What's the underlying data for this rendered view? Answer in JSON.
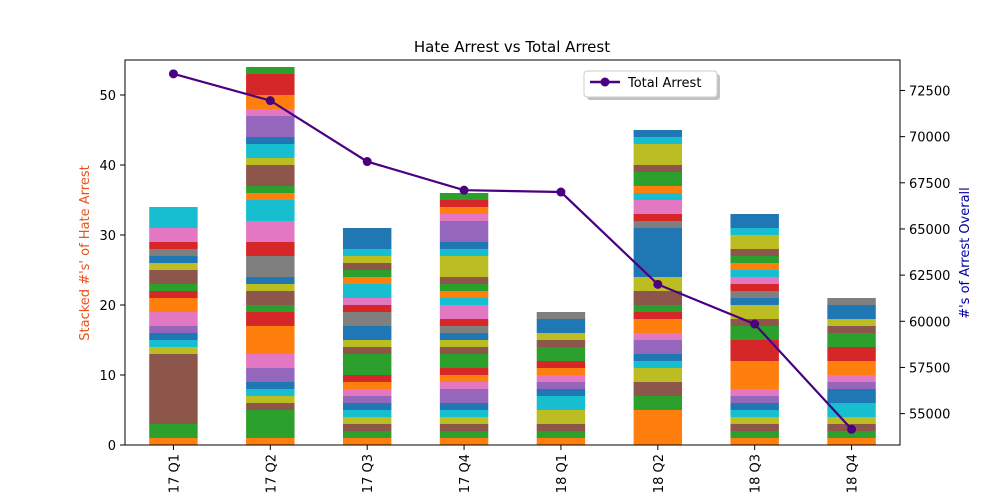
{
  "chart_data": {
    "type": "bar",
    "subtype": "stacked-bar-with-line",
    "title": "Hate Arrest vs Total Arrest",
    "ylabel_left": "Stacked #'s' of Hate Arrest",
    "ylabel_left_color": "#e8531d",
    "ylabel_right": "#'s of Arrest Overall",
    "ylabel_right_color": "#0000a0",
    "categories": [
      "17 Q1",
      "17 Q2",
      "17 Q3",
      "17 Q4",
      "18 Q1",
      "18 Q2",
      "18 Q3",
      "18 Q4"
    ],
    "ylim_left": [
      0,
      55
    ],
    "yticks_left": [
      "0",
      "10",
      "20",
      "30",
      "40",
      "50"
    ],
    "ylim_right": [
      53300,
      74150
    ],
    "yticks_right": [
      "55000",
      "57500",
      "60000",
      "62500",
      "65000",
      "67500",
      "70000",
      "72500"
    ],
    "stack_colors": [
      "#ff7f0e",
      "#2ca02c",
      "#8c564b",
      "#bcbd22",
      "#17becf",
      "#1f77b4",
      "#9467bd",
      "#e377c2",
      "#ff7f0e",
      "#d62728",
      "#2ca02c",
      "#8c564b",
      "#bcbd22",
      "#1f77b4",
      "#7f7f7f",
      "#d62728",
      "#e377c2",
      "#17becf"
    ],
    "stacks": [
      [
        1,
        2,
        10,
        1,
        1,
        1,
        1,
        2,
        2,
        1,
        1,
        2,
        1,
        1,
        1,
        1,
        2,
        3
      ],
      [
        1,
        4,
        1,
        1,
        1,
        1,
        2,
        2,
        4,
        2,
        1,
        2,
        1,
        1,
        3,
        2,
        3,
        3,
        1,
        1,
        3,
        1,
        2,
        1,
        3,
        1,
        2,
        3,
        1
      ],
      [
        1,
        1,
        1,
        1,
        1,
        1,
        1,
        1,
        1,
        1,
        3,
        1,
        1,
        2,
        2,
        1,
        1,
        2,
        1,
        1,
        1,
        1,
        1,
        3
      ],
      [
        1,
        1,
        1,
        1,
        1,
        1,
        2,
        1,
        1,
        1,
        2,
        1,
        1,
        1,
        1,
        1,
        2,
        1,
        1,
        1,
        1,
        3,
        1,
        1,
        3,
        1,
        1,
        1,
        1
      ],
      [
        1,
        1,
        1,
        2,
        2,
        1,
        1,
        1,
        1,
        1,
        2,
        1,
        1,
        2,
        1
      ],
      [
        5,
        2,
        2,
        2,
        1,
        1,
        2,
        1,
        2,
        1,
        1,
        2,
        2,
        7,
        1,
        1,
        2,
        1,
        1,
        2,
        1,
        3,
        1,
        1
      ],
      [
        1,
        1,
        1,
        1,
        1,
        1,
        1,
        1,
        4,
        3,
        2,
        1,
        2,
        1,
        1,
        1,
        1,
        1,
        1,
        1,
        1,
        2,
        1,
        2
      ],
      [
        1,
        1,
        1,
        1,
        2,
        2,
        1,
        1,
        2,
        2,
        2,
        1,
        1,
        2,
        1
      ]
    ],
    "line_series": {
      "name": "Total Arrest",
      "color": "#4b0082",
      "values": [
        73400,
        71950,
        68650,
        67100,
        67000,
        62000,
        59850,
        54150
      ]
    },
    "legend_position": "upper-center-right"
  }
}
